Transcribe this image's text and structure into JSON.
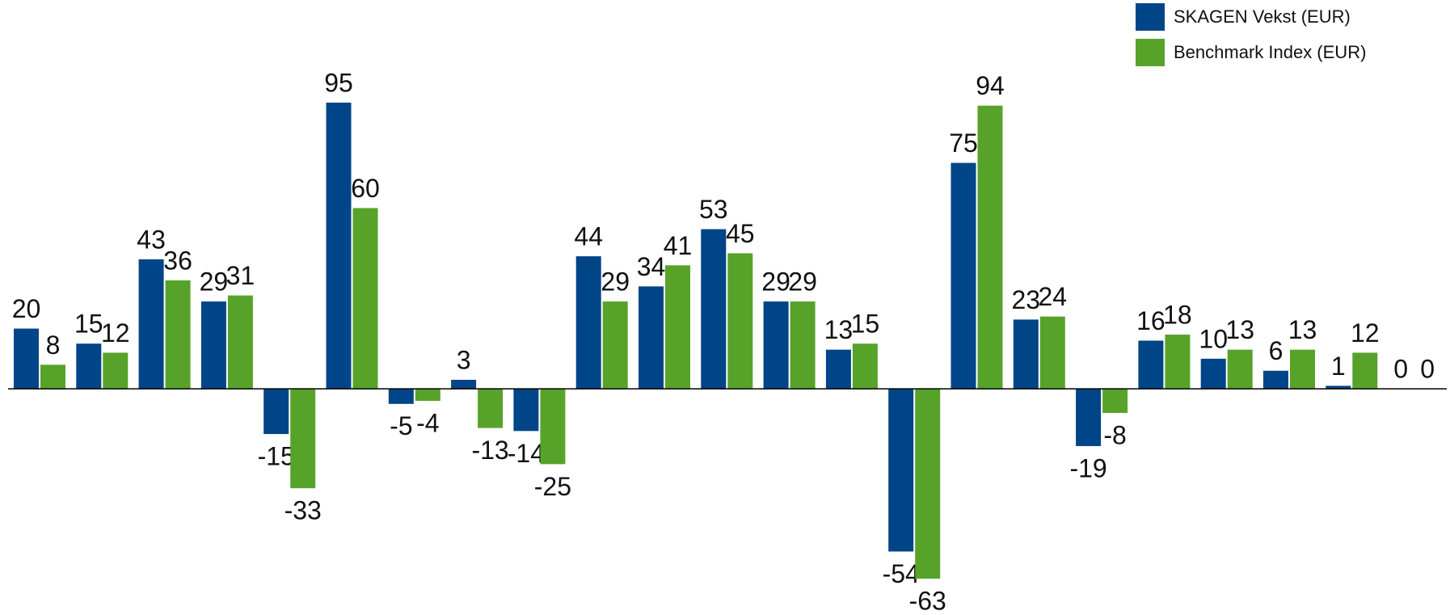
{
  "chart_data": {
    "type": "bar",
    "categories": [
      null,
      null,
      null,
      null,
      null,
      null,
      null,
      null,
      null,
      null,
      null,
      null,
      null,
      null,
      null,
      null,
      null,
      null,
      null,
      null,
      null,
      null,
      null
    ],
    "series": [
      {
        "name": "SKAGEN Vekst (EUR)",
        "color": "#004587",
        "values": [
          20,
          15,
          43,
          29,
          -15,
          95,
          -5,
          3,
          -14,
          44,
          34,
          53,
          29,
          13,
          -54,
          75,
          23,
          -19,
          16,
          10,
          6,
          1,
          0
        ]
      },
      {
        "name": "Benchmark Index (EUR)",
        "color": "#57a32a",
        "values": [
          8,
          12,
          36,
          31,
          -33,
          60,
          -4,
          -13,
          -25,
          29,
          41,
          45,
          29,
          15,
          -63,
          94,
          24,
          -8,
          18,
          13,
          13,
          12,
          0
        ]
      }
    ],
    "grid": false,
    "legend": "top-right"
  }
}
